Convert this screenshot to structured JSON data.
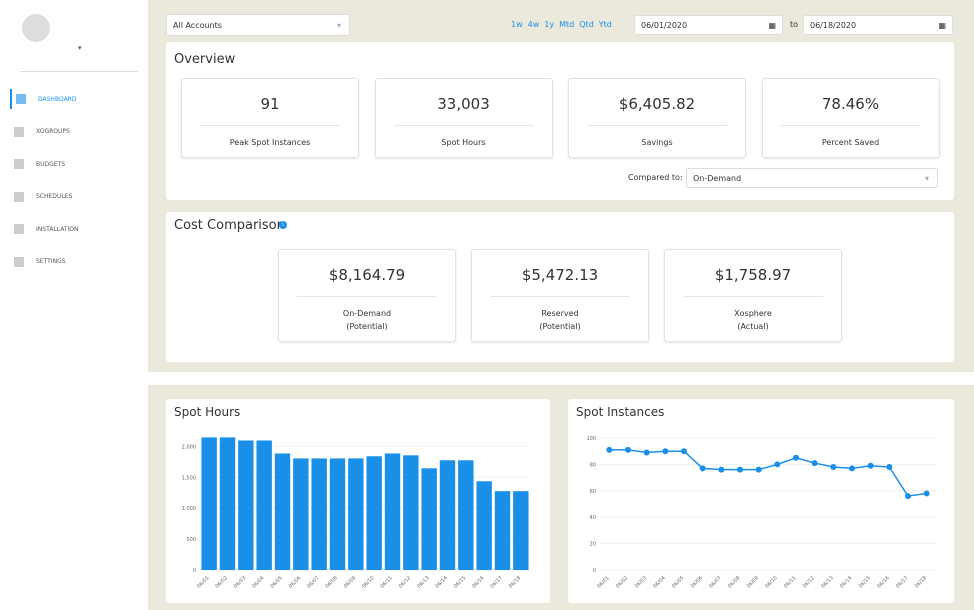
{
  "sidebar": {
    "nav": [
      "DASHBOARD",
      "XOGROUPS",
      "BUDGETS",
      "SCHEDULES",
      "INSTALLATION",
      "SETTINGS"
    ]
  },
  "toolbar": {
    "account": "All Accounts",
    "ranges": [
      "1w",
      "4w",
      "1y",
      "Mtd",
      "Qtd",
      "Ytd"
    ],
    "date_from": "06/01/2020",
    "to": "to",
    "date_to": "06/18/2020"
  },
  "overview": {
    "title": "Overview",
    "cards": [
      {
        "value": "91",
        "label": "Peak Spot Instances"
      },
      {
        "value": "33,003",
        "label": "Spot Hours"
      },
      {
        "value": "$6,405.82",
        "label": "Savings"
      },
      {
        "value": "78.46%",
        "label": "Percent Saved"
      }
    ],
    "compared_label": "Compared to:",
    "compared_value": "On-Demand"
  },
  "cost": {
    "title": "Cost Comparison",
    "cards": [
      {
        "value": "$8,164.79",
        "label": "On-Demand",
        "note": "(Potential)"
      },
      {
        "value": "$5,472.13",
        "label": "Reserved",
        "note": "(Potential)"
      },
      {
        "value": "$1,758.97",
        "label": "Xosphere",
        "note": "(Actual)"
      }
    ]
  },
  "chart_data": [
    {
      "type": "bar",
      "title": "Spot Hours",
      "color": "#1a8fe8",
      "categories": [
        "06/01",
        "06/02",
        "06/03",
        "06/04",
        "06/05",
        "06/06",
        "06/07",
        "06/08",
        "06/09",
        "06/10",
        "06/11",
        "06/12",
        "06/13",
        "06/14",
        "06/15",
        "06/16",
        "06/17",
        "06/18"
      ],
      "values": [
        2145,
        2145,
        2095,
        2095,
        1885,
        1805,
        1805,
        1805,
        1805,
        1840,
        1885,
        1855,
        1645,
        1775,
        1775,
        1435,
        1275,
        1275
      ],
      "ylim": [
        0,
        2200
      ],
      "yticks": [
        0,
        500,
        {
          "value": 1000,
          "label": "1,000"
        },
        {
          "value": 1500,
          "label": "1,500"
        },
        {
          "value": 2000,
          "label": "2,000"
        }
      ],
      "grid": true
    },
    {
      "type": "line",
      "title": "Spot Instances",
      "color": "#1a8fe8",
      "categories": [
        "06/01",
        "06/02",
        "06/03",
        "06/04",
        "06/05",
        "06/06",
        "06/07",
        "06/08",
        "06/09",
        "06/10",
        "06/11",
        "06/12",
        "06/13",
        "06/14",
        "06/15",
        "06/16",
        "06/17",
        "06/18"
      ],
      "values": [
        91,
        91,
        89,
        90,
        90,
        77,
        76,
        76,
        76,
        80,
        85,
        81,
        78,
        77,
        79,
        78,
        56,
        58
      ],
      "ylim": [
        0,
        100
      ],
      "yticks": [
        0,
        20,
        40,
        60,
        80,
        100
      ],
      "grid": true
    }
  ]
}
